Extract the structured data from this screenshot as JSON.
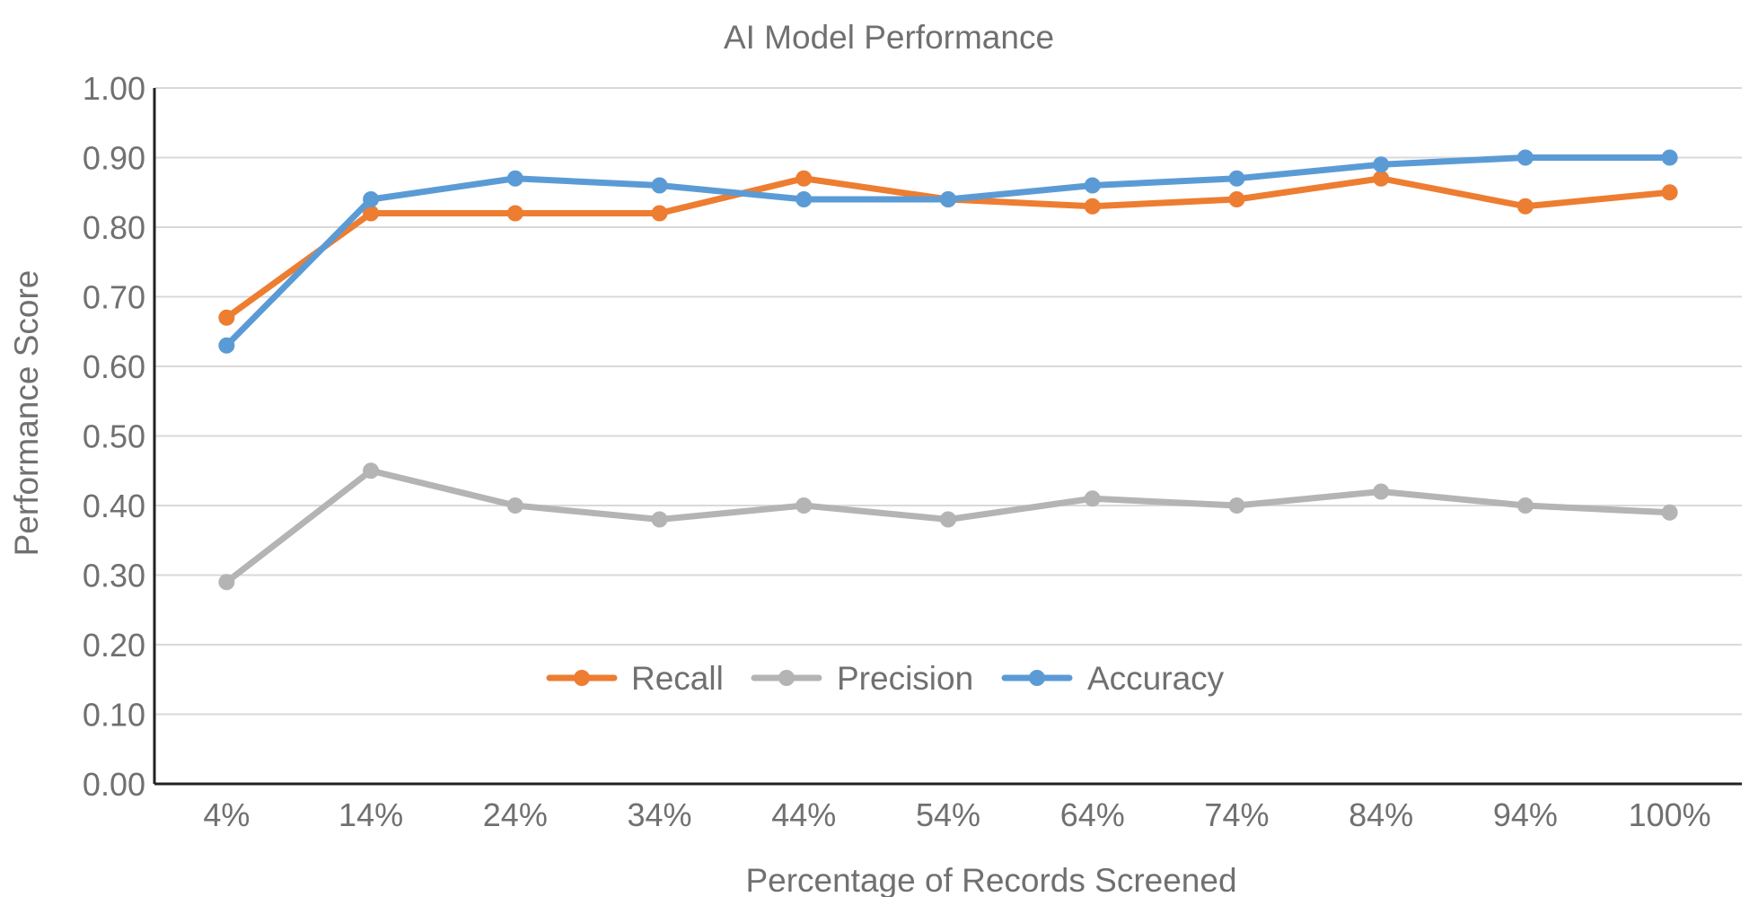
{
  "chart_data": {
    "type": "line",
    "title": "AI Model Performance",
    "xlabel": "Percentage of Records Screened",
    "ylabel": "Performance Score",
    "categories": [
      "4%",
      "14%",
      "24%",
      "34%",
      "44%",
      "54%",
      "64%",
      "74%",
      "84%",
      "94%",
      "100%"
    ],
    "ylim": [
      0,
      1
    ],
    "yticks": [
      "0.00",
      "0.10",
      "0.20",
      "0.30",
      "0.40",
      "0.50",
      "0.60",
      "0.70",
      "0.80",
      "0.90",
      "1.00"
    ],
    "grid": true,
    "legend_position": "lower-center-inside",
    "series": [
      {
        "name": "Recall",
        "color": "#ED7D31",
        "values": [
          0.67,
          0.82,
          0.82,
          0.82,
          0.87,
          0.84,
          0.83,
          0.84,
          0.87,
          0.83,
          0.85
        ]
      },
      {
        "name": "Precision",
        "color": "#B4B4B4",
        "values": [
          0.29,
          0.45,
          0.4,
          0.38,
          0.4,
          0.38,
          0.41,
          0.4,
          0.42,
          0.4,
          0.39
        ]
      },
      {
        "name": "Accuracy",
        "color": "#5B9BD5",
        "values": [
          0.63,
          0.84,
          0.87,
          0.86,
          0.84,
          0.84,
          0.86,
          0.87,
          0.89,
          0.9,
          0.9
        ]
      }
    ]
  }
}
